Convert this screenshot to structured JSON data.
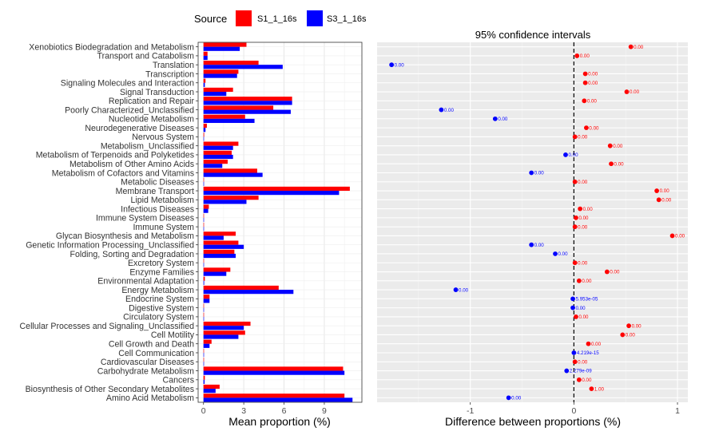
{
  "legend": {
    "title": "Source",
    "items": [
      {
        "label": "S1_1_16s",
        "color": "#ff0000"
      },
      {
        "label": "S3_1_16s",
        "color": "#0000ff"
      }
    ]
  },
  "colors": {
    "s1": "#ff0000",
    "s3": "#0000ff"
  },
  "chart_data": [
    {
      "type": "bar",
      "orientation": "horizontal",
      "xlabel": "Mean proportion (%)",
      "xlim": [
        -0.4,
        11.8
      ],
      "xticks": [
        0,
        3,
        6,
        9
      ],
      "grid": true,
      "categories": [
        "Xenobiotics Biodegradation and Metabolism",
        "Transport and Catabolism",
        "Translation",
        "Transcription",
        "Signaling Molecules and Interaction",
        "Signal Transduction",
        "Replication and Repair",
        "Poorly Characterized_Unclassified",
        "Nucleotide Metabolism",
        "Neurodegenerative Diseases",
        "Nervous System",
        "Metabolism_Unclassified",
        "Metabolism of Terpenoids and Polyketides",
        "Metabolism of Other Amino Acids",
        "Metabolism of Cofactors and Vitamins",
        "Metabolic Diseases",
        "Membrane Transport",
        "Lipid Metabolism",
        "Infectious Diseases",
        "Immune System Diseases",
        "Immune System",
        "Glycan Biosynthesis and Metabolism",
        "Genetic Information Processing_Unclassified",
        "Folding, Sorting and Degradation",
        "Excretory System",
        "Enzyme Families",
        "Environmental Adaptation",
        "Energy Metabolism",
        "Endocrine System",
        "Digestive System",
        "Circulatory System",
        "Cellular Processes and Signaling_Unclassified",
        "Cell Motility",
        "Cell Growth and Death",
        "Cell Communication",
        "Cardiovascular Diseases",
        "Carbohydrate Metabolism",
        "Cancers",
        "Biosynthesis of Other Secondary Metabolites",
        "Amino Acid Metabolism"
      ],
      "series": [
        {
          "name": "S1_1_16s",
          "color": "#ff0000",
          "values": [
            3.2,
            0.3,
            4.1,
            2.6,
            0.15,
            2.2,
            6.6,
            5.2,
            3.1,
            0.25,
            0.05,
            2.6,
            2.1,
            1.8,
            4.0,
            0.02,
            10.9,
            4.1,
            0.4,
            0.03,
            0.03,
            2.4,
            2.6,
            2.3,
            0.03,
            2.0,
            0.1,
            5.6,
            0.45,
            0.02,
            0.03,
            3.5,
            3.1,
            0.6,
            0.0,
            0.02,
            10.4,
            0.1,
            1.2,
            10.5
          ]
        },
        {
          "name": "S3_1_16s",
          "color": "#0000ff",
          "values": [
            2.7,
            0.3,
            5.9,
            2.5,
            0.1,
            1.7,
            6.6,
            6.5,
            3.8,
            0.15,
            0.02,
            2.2,
            2.2,
            1.4,
            4.4,
            0.02,
            10.1,
            3.2,
            0.35,
            0.02,
            0.02,
            1.5,
            3.0,
            2.4,
            0.02,
            1.7,
            0.05,
            6.7,
            0.45,
            0.02,
            0.02,
            3.0,
            2.6,
            0.45,
            0.0,
            0.02,
            10.5,
            0.08,
            0.9,
            11.1
          ]
        }
      ]
    },
    {
      "type": "scatter",
      "title": "95% confidence intervals",
      "xlabel": "Difference between proportions (%)",
      "xlim": [
        -1.9,
        1.1
      ],
      "xticks": [
        -1,
        0,
        1
      ],
      "xtick_labels": [
        "-1",
        "0",
        "1"
      ],
      "reference_line": 0,
      "grid": true,
      "points": [
        {
          "x": 0.55,
          "label": "0.00",
          "group": "S1_1_16s"
        },
        {
          "x": 0.03,
          "label": "0.00",
          "group": "S1_1_16s"
        },
        {
          "x": -1.76,
          "label": "0.00",
          "group": "S3_1_16s"
        },
        {
          "x": 0.11,
          "label": "0.00",
          "group": "S1_1_16s"
        },
        {
          "x": 0.11,
          "label": "0.00",
          "group": "S1_1_16s"
        },
        {
          "x": 0.51,
          "label": "0.00",
          "group": "S1_1_16s"
        },
        {
          "x": 0.1,
          "label": "0.00",
          "group": "S1_1_16s"
        },
        {
          "x": -1.28,
          "label": "0.00",
          "group": "S3_1_16s"
        },
        {
          "x": -0.76,
          "label": "0.00",
          "group": "S3_1_16s"
        },
        {
          "x": 0.12,
          "label": "0.00",
          "group": "S1_1_16s"
        },
        {
          "x": 0.01,
          "label": "0.00",
          "group": "S1_1_16s"
        },
        {
          "x": 0.35,
          "label": "0.00",
          "group": "S1_1_16s"
        },
        {
          "x": -0.08,
          "label": "0.00",
          "group": "S3_1_16s"
        },
        {
          "x": 0.36,
          "label": "0.00",
          "group": "S1_1_16s"
        },
        {
          "x": -0.41,
          "label": "0.00",
          "group": "S3_1_16s"
        },
        {
          "x": 0.01,
          "label": "0.00",
          "group": "S1_1_16s"
        },
        {
          "x": 0.8,
          "label": "0.00",
          "group": "S1_1_16s"
        },
        {
          "x": 0.82,
          "label": "0.00",
          "group": "S1_1_16s"
        },
        {
          "x": 0.06,
          "label": "0.00",
          "group": "S1_1_16s"
        },
        {
          "x": 0.02,
          "label": "0.00",
          "group": "S1_1_16s"
        },
        {
          "x": 0.01,
          "label": "0.00",
          "group": "S1_1_16s"
        },
        {
          "x": 0.95,
          "label": "0.00",
          "group": "S1_1_16s"
        },
        {
          "x": -0.41,
          "label": "0.00",
          "group": "S3_1_16s"
        },
        {
          "x": -0.18,
          "label": "0.00",
          "group": "S3_1_16s"
        },
        {
          "x": 0.01,
          "label": "0.00",
          "group": "S1_1_16s"
        },
        {
          "x": 0.32,
          "label": "0.00",
          "group": "S1_1_16s"
        },
        {
          "x": 0.05,
          "label": "0.00",
          "group": "S1_1_16s"
        },
        {
          "x": -1.14,
          "label": "0.00",
          "group": "S3_1_16s"
        },
        {
          "x": -0.01,
          "label": "5.953e-05",
          "group": "S3_1_16s"
        },
        {
          "x": -0.01,
          "label": "0.00",
          "group": "S3_1_16s"
        },
        {
          "x": 0.02,
          "label": "0.00",
          "group": "S1_1_16s"
        },
        {
          "x": 0.53,
          "label": "0.00",
          "group": "S1_1_16s"
        },
        {
          "x": 0.47,
          "label": "0.00",
          "group": "S1_1_16s"
        },
        {
          "x": 0.14,
          "label": "0.00",
          "group": "S1_1_16s"
        },
        {
          "x": 0.0,
          "label": "4.219e-15",
          "group": "S3_1_16s"
        },
        {
          "x": 0.01,
          "label": "0.00",
          "group": "S1_1_16s"
        },
        {
          "x": -0.07,
          "label": "2.279e-09",
          "group": "S3_1_16s"
        },
        {
          "x": 0.05,
          "label": "0.00",
          "group": "S1_1_16s"
        },
        {
          "x": 0.17,
          "label": "1.00",
          "group": "S1_1_16s"
        },
        {
          "x": -0.63,
          "label": "0.00",
          "group": "S3_1_16s"
        }
      ]
    }
  ]
}
